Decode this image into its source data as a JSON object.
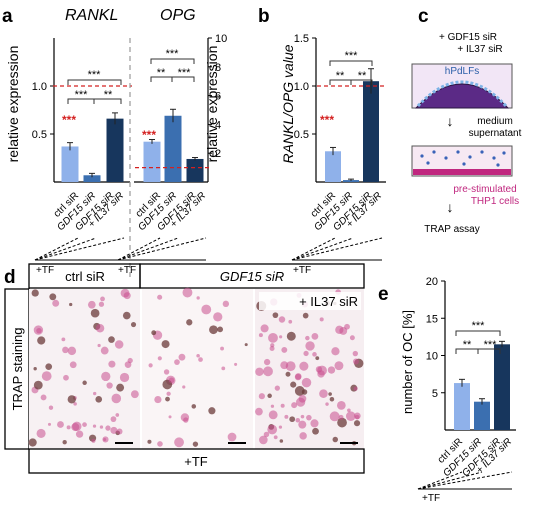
{
  "panels": {
    "a": {
      "letter": "a",
      "left": {
        "title": "RANKL",
        "ylabel": "relative expression",
        "ticks": [
          "1.0",
          "0.5"
        ]
      },
      "right": {
        "title": "OPG",
        "ylabel": "relative expression",
        "ticks": [
          "10",
          "8",
          "6",
          "4",
          "2"
        ]
      },
      "sig": [
        "***",
        "**",
        "***",
        "**",
        "***",
        "***",
        "***"
      ],
      "xlabels": [
        "ctrl siR",
        "GDF15 siR",
        "GDF15 siR",
        "+ IL37 siR"
      ],
      "tf": "+TF"
    },
    "b": {
      "letter": "b",
      "ylabel": "RANKL/OPG value",
      "ticks": [
        "1.5",
        "1.0",
        "0.5"
      ],
      "sig": [
        "***",
        "***",
        "**",
        "***"
      ],
      "xlabels": [
        "ctrl siR",
        "GDF15 siR",
        "GDF15 siR",
        "+ IL37 siR"
      ],
      "tf": "+TF"
    },
    "c": {
      "letter": "c",
      "treat1": "+ GDF15 siR",
      "treat2": "+ IL37 siR",
      "cells": "hPdLFs",
      "transfer1": "medium",
      "transfer2": "supernatant",
      "thp1_1": "pre-stimulated",
      "thp1_2": "THP1 cells",
      "assay": "TRAP assay"
    },
    "d": {
      "letter": "d",
      "col1": "ctrl siR",
      "col2": "GDF15 siR",
      "il37": "+ IL37 siR",
      "side": "TRAP staining",
      "tf": "+TF"
    },
    "e": {
      "letter": "e",
      "ylabel": "number of OC [%]",
      "ticks": [
        "20",
        "15",
        "10",
        "5"
      ],
      "sig": [
        "***",
        "**",
        "***"
      ],
      "xlabels": [
        "ctrl siR",
        "GDF15 siR",
        "GDF15 siR",
        "+ IL37 siR"
      ],
      "tf": "+TF"
    }
  },
  "colors": {
    "ctrl": "#8fb1ea",
    "gdf15": "#3b6fb0",
    "both": "#17365d",
    "ref": "#d42020",
    "pink": "#c0277f"
  },
  "chart_data": [
    {
      "type": "bar",
      "panel": "a-left",
      "title": "RANKL",
      "ylabel": "relative expression",
      "ylim": [
        0,
        1.5
      ],
      "categories": [
        "ctrl siR",
        "GDF15 siR",
        "GDF15 siR + IL37 siR"
      ],
      "values": [
        0.37,
        0.07,
        0.66
      ],
      "errors": [
        0.04,
        0.02,
        0.06
      ],
      "reference_line": 1.0,
      "reference_sig": "***"
    },
    {
      "type": "bar",
      "panel": "a-right",
      "title": "OPG",
      "ylabel": "relative expression",
      "ylim": [
        0,
        10
      ],
      "categories": [
        "ctrl siR",
        "GDF15 siR",
        "GDF15 siR + IL37 siR"
      ],
      "values": [
        2.8,
        4.6,
        1.6
      ],
      "errors": [
        0.15,
        0.45,
        0.1
      ],
      "reference_line": 1.0,
      "reference_sig": "***"
    },
    {
      "type": "bar",
      "panel": "b",
      "ylabel": "RANKL/OPG value",
      "ylim": [
        0,
        1.5
      ],
      "categories": [
        "ctrl siR",
        "GDF15 siR",
        "GDF15 siR + IL37 siR"
      ],
      "values": [
        0.32,
        0.02,
        1.05
      ],
      "errors": [
        0.04,
        0.01,
        0.13
      ],
      "reference_line": 1.0,
      "reference_sig": "***"
    },
    {
      "type": "bar",
      "panel": "e",
      "ylabel": "number of OC [%]",
      "ylim": [
        0,
        20
      ],
      "categories": [
        "ctrl siR",
        "GDF15 siR",
        "GDF15 siR + IL37 siR"
      ],
      "values": [
        6.3,
        3.8,
        11.5
      ],
      "errors": [
        0.5,
        0.4,
        0.4
      ]
    }
  ]
}
